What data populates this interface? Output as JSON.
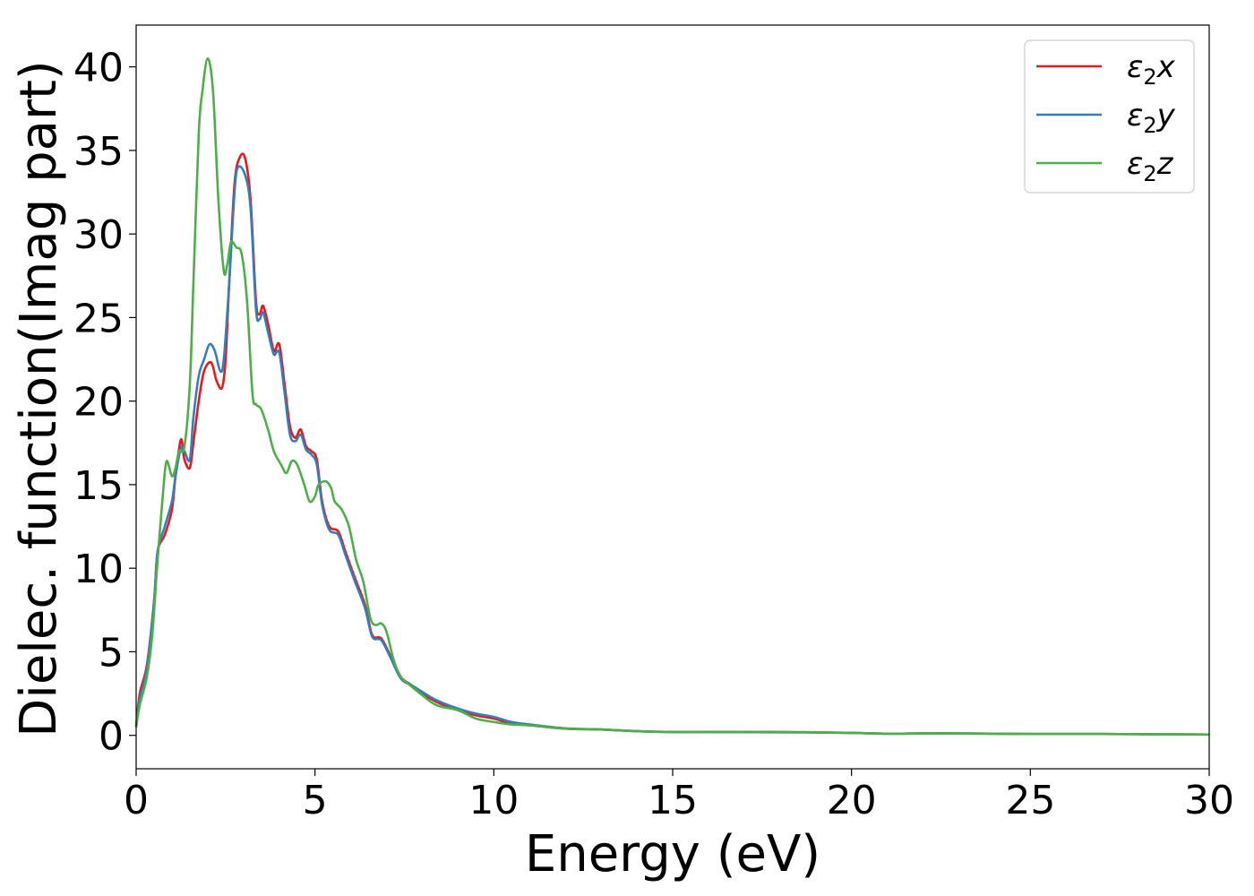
{
  "chart_data": {
    "type": "line",
    "xlabel": "Energy (eV)",
    "ylabel": "Dielec. function(Imag part)",
    "xlim": [
      0,
      30
    ],
    "ylim": [
      -2,
      42.5
    ],
    "xticks": [
      0,
      5,
      10,
      15,
      20,
      25,
      30
    ],
    "yticks": [
      0,
      5,
      10,
      15,
      20,
      25,
      30,
      35,
      40
    ],
    "grid": false,
    "legend_position": "top-right",
    "series": [
      {
        "name": "ε2x",
        "legend_base": "ε",
        "legend_sub": "2",
        "legend_var": "x",
        "color": "#e41a1c",
        "points": [
          [
            0,
            0.5
          ],
          [
            0.1,
            2.5
          ],
          [
            0.3,
            4.2
          ],
          [
            0.5,
            8
          ],
          [
            0.6,
            11
          ],
          [
            0.8,
            12
          ],
          [
            1.0,
            13.5
          ],
          [
            1.1,
            15.5
          ],
          [
            1.25,
            17.7
          ],
          [
            1.35,
            16.5
          ],
          [
            1.5,
            16
          ],
          [
            1.6,
            17.5
          ],
          [
            1.75,
            20
          ],
          [
            1.9,
            21.8
          ],
          [
            2.1,
            22.3
          ],
          [
            2.25,
            21.2
          ],
          [
            2.4,
            20.8
          ],
          [
            2.5,
            22.5
          ],
          [
            2.6,
            27
          ],
          [
            2.75,
            33
          ],
          [
            2.9,
            34.6
          ],
          [
            3.05,
            34.5
          ],
          [
            3.2,
            32
          ],
          [
            3.35,
            26
          ],
          [
            3.45,
            25.2
          ],
          [
            3.55,
            25.7
          ],
          [
            3.7,
            24.5
          ],
          [
            3.85,
            23
          ],
          [
            4.0,
            23.4
          ],
          [
            4.15,
            21
          ],
          [
            4.3,
            18.5
          ],
          [
            4.45,
            17.8
          ],
          [
            4.6,
            18.3
          ],
          [
            4.75,
            17.3
          ],
          [
            4.9,
            17
          ],
          [
            5.05,
            16.5
          ],
          [
            5.2,
            14
          ],
          [
            5.4,
            12.5
          ],
          [
            5.65,
            12.2
          ],
          [
            5.85,
            11
          ],
          [
            6.1,
            9.5
          ],
          [
            6.4,
            7.8
          ],
          [
            6.6,
            6
          ],
          [
            6.85,
            5.8
          ],
          [
            7.1,
            4.8
          ],
          [
            7.4,
            3.5
          ],
          [
            7.7,
            3
          ],
          [
            8.0,
            2.5
          ],
          [
            8.4,
            2
          ],
          [
            9.0,
            1.5
          ],
          [
            9.5,
            1.2
          ],
          [
            10.0,
            1
          ],
          [
            10.5,
            0.7
          ],
          [
            11.0,
            0.6
          ],
          [
            12.0,
            0.4
          ],
          [
            13.0,
            0.35
          ],
          [
            14.0,
            0.25
          ],
          [
            15.0,
            0.2
          ],
          [
            16.0,
            0.2
          ],
          [
            18.0,
            0.2
          ],
          [
            20.0,
            0.15
          ],
          [
            21.0,
            0.1
          ],
          [
            22.5,
            0.12
          ],
          [
            25.0,
            0.08
          ],
          [
            27.0,
            0.08
          ],
          [
            30.0,
            0.05
          ]
        ]
      },
      {
        "name": "ε2y",
        "legend_base": "ε",
        "legend_sub": "2",
        "legend_var": "y",
        "color": "#377eb8",
        "points": [
          [
            0,
            0.5
          ],
          [
            0.1,
            2.2
          ],
          [
            0.3,
            4
          ],
          [
            0.5,
            8
          ],
          [
            0.6,
            11
          ],
          [
            0.8,
            12.5
          ],
          [
            1.0,
            14
          ],
          [
            1.1,
            15.5
          ],
          [
            1.25,
            17.2
          ],
          [
            1.35,
            17
          ],
          [
            1.5,
            16.5
          ],
          [
            1.6,
            19
          ],
          [
            1.75,
            21.5
          ],
          [
            1.9,
            22.5
          ],
          [
            2.05,
            23.4
          ],
          [
            2.2,
            23
          ],
          [
            2.35,
            21.8
          ],
          [
            2.45,
            22.5
          ],
          [
            2.6,
            27
          ],
          [
            2.75,
            32.5
          ],
          [
            2.85,
            34
          ],
          [
            3.05,
            33.5
          ],
          [
            3.2,
            31.5
          ],
          [
            3.35,
            25.5
          ],
          [
            3.45,
            24.9
          ],
          [
            3.55,
            25.3
          ],
          [
            3.7,
            24
          ],
          [
            3.85,
            22.8
          ],
          [
            4.0,
            22.9
          ],
          [
            4.15,
            20.5
          ],
          [
            4.3,
            18
          ],
          [
            4.45,
            17.6
          ],
          [
            4.6,
            18
          ],
          [
            4.75,
            17.1
          ],
          [
            4.9,
            16.8
          ],
          [
            5.05,
            16.2
          ],
          [
            5.2,
            13.8
          ],
          [
            5.4,
            12.3
          ],
          [
            5.65,
            12
          ],
          [
            5.85,
            10.8
          ],
          [
            6.1,
            9.3
          ],
          [
            6.4,
            7.6
          ],
          [
            6.6,
            5.9
          ],
          [
            6.85,
            5.7
          ],
          [
            7.1,
            4.7
          ],
          [
            7.4,
            3.4
          ],
          [
            7.7,
            3
          ],
          [
            8.0,
            2.6
          ],
          [
            8.4,
            2.1
          ],
          [
            9.0,
            1.6
          ],
          [
            9.5,
            1.3
          ],
          [
            10.0,
            1.1
          ],
          [
            10.5,
            0.8
          ],
          [
            11.0,
            0.65
          ],
          [
            12.0,
            0.42
          ],
          [
            13.0,
            0.35
          ],
          [
            14.0,
            0.25
          ],
          [
            15.0,
            0.2
          ],
          [
            16.0,
            0.2
          ],
          [
            18.0,
            0.18
          ],
          [
            20.0,
            0.15
          ],
          [
            21.0,
            0.1
          ],
          [
            22.5,
            0.12
          ],
          [
            25.0,
            0.08
          ],
          [
            27.0,
            0.08
          ],
          [
            30.0,
            0.05
          ]
        ]
      },
      {
        "name": "ε2z",
        "legend_base": "ε",
        "legend_sub": "2",
        "legend_var": "z",
        "color": "#4daf4a",
        "points": [
          [
            0,
            0.5
          ],
          [
            0.1,
            1.8
          ],
          [
            0.3,
            3.5
          ],
          [
            0.45,
            6
          ],
          [
            0.6,
            10.5
          ],
          [
            0.75,
            14.5
          ],
          [
            0.85,
            16.4
          ],
          [
            1.0,
            15.5
          ],
          [
            1.1,
            16
          ],
          [
            1.2,
            17
          ],
          [
            1.35,
            17.3
          ],
          [
            1.5,
            21
          ],
          [
            1.6,
            27
          ],
          [
            1.75,
            36
          ],
          [
            1.85,
            38.5
          ],
          [
            2.0,
            40.5
          ],
          [
            2.15,
            38.5
          ],
          [
            2.3,
            32
          ],
          [
            2.45,
            27.8
          ],
          [
            2.55,
            28.2
          ],
          [
            2.65,
            29.5
          ],
          [
            2.8,
            29.2
          ],
          [
            2.95,
            28.8
          ],
          [
            3.1,
            26
          ],
          [
            3.25,
            20.5
          ],
          [
            3.35,
            19.8
          ],
          [
            3.5,
            19.5
          ],
          [
            3.7,
            18.2
          ],
          [
            3.85,
            17
          ],
          [
            4.05,
            16.2
          ],
          [
            4.2,
            15.7
          ],
          [
            4.35,
            16.4
          ],
          [
            4.5,
            16.2
          ],
          [
            4.7,
            15
          ],
          [
            4.85,
            14
          ],
          [
            5.0,
            14.3
          ],
          [
            5.1,
            15
          ],
          [
            5.3,
            15.2
          ],
          [
            5.45,
            14.8
          ],
          [
            5.55,
            14
          ],
          [
            5.75,
            13.5
          ],
          [
            5.95,
            12.5
          ],
          [
            6.15,
            10.5
          ],
          [
            6.35,
            9.2
          ],
          [
            6.55,
            7
          ],
          [
            6.7,
            6.6
          ],
          [
            6.85,
            6.7
          ],
          [
            7.0,
            6.2
          ],
          [
            7.2,
            4.5
          ],
          [
            7.4,
            3.5
          ],
          [
            7.6,
            3.1
          ],
          [
            8.0,
            2.4
          ],
          [
            8.4,
            1.8
          ],
          [
            9.0,
            1.5
          ],
          [
            9.5,
            1
          ],
          [
            10.0,
            0.8
          ],
          [
            10.5,
            0.65
          ],
          [
            11.0,
            0.6
          ],
          [
            12.0,
            0.4
          ],
          [
            13.0,
            0.35
          ],
          [
            14.0,
            0.25
          ],
          [
            15.0,
            0.2
          ],
          [
            16.0,
            0.2
          ],
          [
            18.0,
            0.2
          ],
          [
            20.0,
            0.15
          ],
          [
            21.0,
            0.1
          ],
          [
            22.5,
            0.12
          ],
          [
            25.0,
            0.08
          ],
          [
            27.0,
            0.08
          ],
          [
            30.0,
            0.05
          ]
        ]
      }
    ]
  }
}
